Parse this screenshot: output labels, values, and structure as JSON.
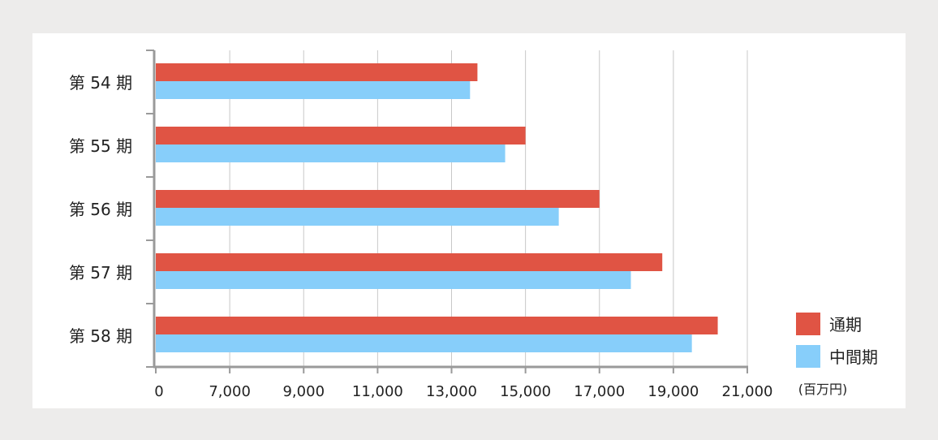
{
  "chart_data": {
    "type": "bar",
    "orientation": "horizontal",
    "categories": [
      "第 54 期",
      "第 55 期",
      "第 56 期",
      "第 57 期",
      "第 58 期"
    ],
    "series": [
      {
        "name": "通期",
        "color": "#e05444",
        "values": [
          13700,
          15000,
          17000,
          18700,
          20200
        ]
      },
      {
        "name": "中間期",
        "color": "#87cefa",
        "values": [
          13500,
          14450,
          15900,
          17850,
          19500
        ]
      }
    ],
    "x_ticks": [
      "0",
      "7,000",
      "9,000",
      "11,000",
      "13,000",
      "15,000",
      "17,000",
      "19,000",
      "21,000"
    ],
    "x_tick_values": [
      5000,
      7000,
      9000,
      11000,
      13000,
      15000,
      17000,
      19000,
      21000
    ],
    "xlim": [
      5000,
      21000
    ],
    "x_unit": "(百万円)",
    "grid": true,
    "legend_position": "bottom-right"
  }
}
